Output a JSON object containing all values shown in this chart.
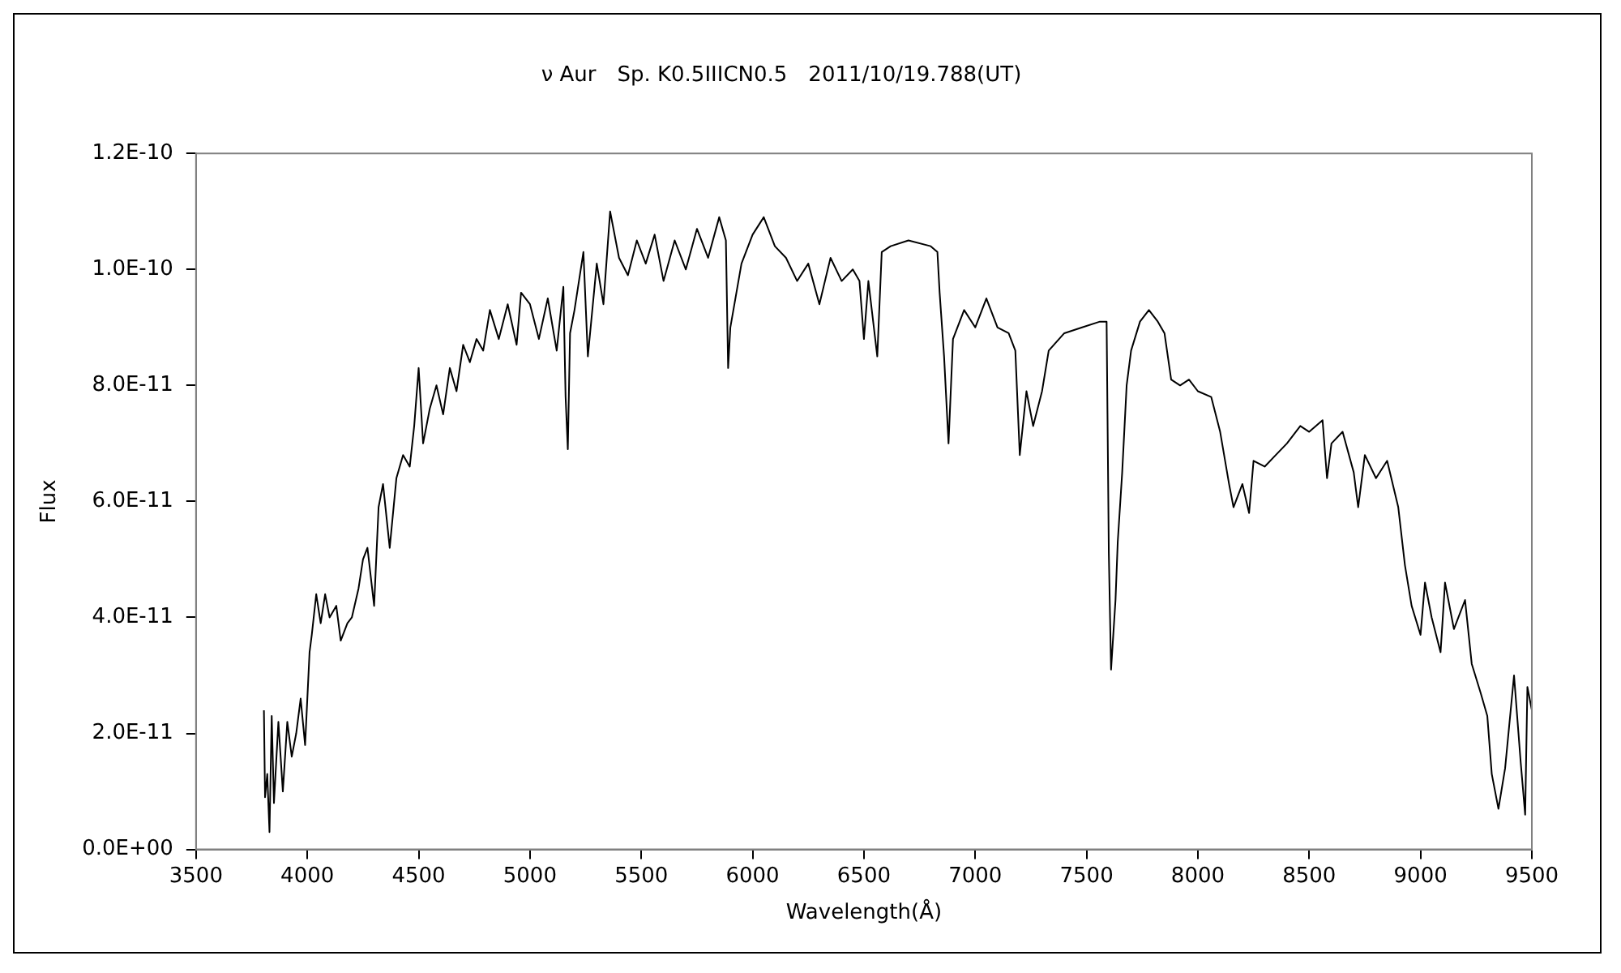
{
  "chart_data": {
    "type": "line",
    "title": "ν Aur　Sp. K0.5IIICN0.5　2011/10/19.788(UT)",
    "xlabel": "Wavelength(Å)",
    "ylabel": "Flux",
    "grid": false,
    "legend": false,
    "marker": "none",
    "line_style": "solid",
    "xlim": [
      3500,
      9500
    ],
    "xticks": [
      3500,
      4000,
      4500,
      5000,
      5500,
      6000,
      6500,
      7000,
      7500,
      8000,
      8500,
      9000,
      9500
    ],
    "ylim": [
      0,
      1.2e-10
    ],
    "yticks": [
      {
        "value": 0,
        "label": "0.0E+00"
      },
      {
        "value": 2e-11,
        "label": "2.0E-11"
      },
      {
        "value": 4e-11,
        "label": "4.0E-11"
      },
      {
        "value": 6e-11,
        "label": "6.0E-11"
      },
      {
        "value": 8e-11,
        "label": "8.0E-11"
      },
      {
        "value": 1e-10,
        "label": "1.0E-10"
      },
      {
        "value": 1.2e-10,
        "label": "1.2E-10"
      }
    ],
    "series": [
      {
        "color": "#000000",
        "x": [
          3805,
          3810,
          3820,
          3830,
          3840,
          3850,
          3870,
          3890,
          3910,
          3930,
          3950,
          3970,
          3990,
          4010,
          4020,
          4040,
          4060,
          4080,
          4100,
          4130,
          4150,
          4180,
          4200,
          4230,
          4250,
          4270,
          4300,
          4320,
          4340,
          4370,
          4400,
          4430,
          4460,
          4480,
          4500,
          4520,
          4550,
          4580,
          4610,
          4640,
          4670,
          4700,
          4730,
          4760,
          4790,
          4820,
          4860,
          4900,
          4940,
          4960,
          5000,
          5040,
          5080,
          5120,
          5150,
          5160,
          5170,
          5180,
          5200,
          5240,
          5260,
          5300,
          5330,
          5360,
          5400,
          5440,
          5480,
          5520,
          5560,
          5600,
          5650,
          5700,
          5750,
          5800,
          5850,
          5880,
          5890,
          5900,
          5950,
          6000,
          6050,
          6100,
          6150,
          6200,
          6250,
          6300,
          6350,
          6400,
          6450,
          6480,
          6500,
          6520,
          6560,
          6580,
          6620,
          6700,
          6800,
          6830,
          6840,
          6860,
          6880,
          6900,
          6950,
          7000,
          7050,
          7100,
          7150,
          7180,
          7200,
          7230,
          7260,
          7300,
          7330,
          7400,
          7480,
          7560,
          7590,
          7600,
          7610,
          7630,
          7640,
          7660,
          7680,
          7700,
          7740,
          7780,
          7820,
          7850,
          7880,
          7920,
          7960,
          8000,
          8060,
          8100,
          8140,
          8160,
          8200,
          8230,
          8250,
          8300,
          8350,
          8400,
          8460,
          8500,
          8560,
          8580,
          8600,
          8650,
          8700,
          8720,
          8750,
          8800,
          8850,
          8900,
          8930,
          8960,
          9000,
          9020,
          9050,
          9090,
          9110,
          9150,
          9200,
          9230,
          9270,
          9300,
          9320,
          9350,
          9380,
          9420,
          9450,
          9470,
          9480,
          9500
        ],
        "values": [
          2.4e-11,
          9e-12,
          1.3e-11,
          3e-12,
          2.3e-11,
          8e-12,
          2.2e-11,
          1e-11,
          2.2e-11,
          1.6e-11,
          2e-11,
          2.6e-11,
          1.8e-11,
          3.4e-11,
          3.7e-11,
          4.4e-11,
          3.9e-11,
          4.4e-11,
          4e-11,
          4.2e-11,
          3.6e-11,
          3.9e-11,
          4e-11,
          4.5e-11,
          5e-11,
          5.2e-11,
          4.2e-11,
          5.9e-11,
          6.3e-11,
          5.2e-11,
          6.4e-11,
          6.8e-11,
          6.6e-11,
          7.3e-11,
          8.3e-11,
          7e-11,
          7.6e-11,
          8e-11,
          7.5e-11,
          8.3e-11,
          7.9e-11,
          8.7e-11,
          8.4e-11,
          8.8e-11,
          8.6e-11,
          9.3e-11,
          8.8e-11,
          9.4e-11,
          8.7e-11,
          9.6e-11,
          9.4e-11,
          8.8e-11,
          9.5e-11,
          8.6e-11,
          9.7e-11,
          7.8e-11,
          6.9e-11,
          8.9e-11,
          9.3e-11,
          1.03e-10,
          8.5e-11,
          1.01e-10,
          9.4e-11,
          1.1e-10,
          1.02e-10,
          9.9e-11,
          1.05e-10,
          1.01e-10,
          1.06e-10,
          9.8e-11,
          1.05e-10,
          1e-10,
          1.07e-10,
          1.02e-10,
          1.09e-10,
          1.05e-10,
          8.3e-11,
          9e-11,
          1.01e-10,
          1.06e-10,
          1.09e-10,
          1.04e-10,
          1.02e-10,
          9.8e-11,
          1.01e-10,
          9.4e-11,
          1.02e-10,
          9.8e-11,
          1e-10,
          9.8e-11,
          8.8e-11,
          9.8e-11,
          8.5e-11,
          1.03e-10,
          1.04e-10,
          1.05e-10,
          1.04e-10,
          1.03e-10,
          9.6e-11,
          8.5e-11,
          7e-11,
          8.8e-11,
          9.3e-11,
          9e-11,
          9.5e-11,
          9e-11,
          8.9e-11,
          8.6e-11,
          6.8e-11,
          7.9e-11,
          7.3e-11,
          7.9e-11,
          8.6e-11,
          8.9e-11,
          9e-11,
          9.1e-11,
          9.1e-11,
          5.1e-11,
          3.1e-11,
          4.3e-11,
          5.3e-11,
          6.5e-11,
          8e-11,
          8.6e-11,
          9.1e-11,
          9.3e-11,
          9.1e-11,
          8.9e-11,
          8.1e-11,
          8e-11,
          8.1e-11,
          7.9e-11,
          7.8e-11,
          7.2e-11,
          6.3e-11,
          5.9e-11,
          6.3e-11,
          5.8e-11,
          6.7e-11,
          6.6e-11,
          6.8e-11,
          7e-11,
          7.3e-11,
          7.2e-11,
          7.4e-11,
          6.4e-11,
          7e-11,
          7.2e-11,
          6.5e-11,
          5.9e-11,
          6.8e-11,
          6.4e-11,
          6.7e-11,
          5.9e-11,
          4.9e-11,
          4.2e-11,
          3.7e-11,
          4.6e-11,
          4e-11,
          3.4e-11,
          4.6e-11,
          3.8e-11,
          4.3e-11,
          3.2e-11,
          2.7e-11,
          2.3e-11,
          1.3e-11,
          7e-12,
          1.4e-11,
          3e-11,
          1.5e-11,
          6e-12,
          2.8e-11,
          2.4e-11
        ]
      }
    ]
  }
}
